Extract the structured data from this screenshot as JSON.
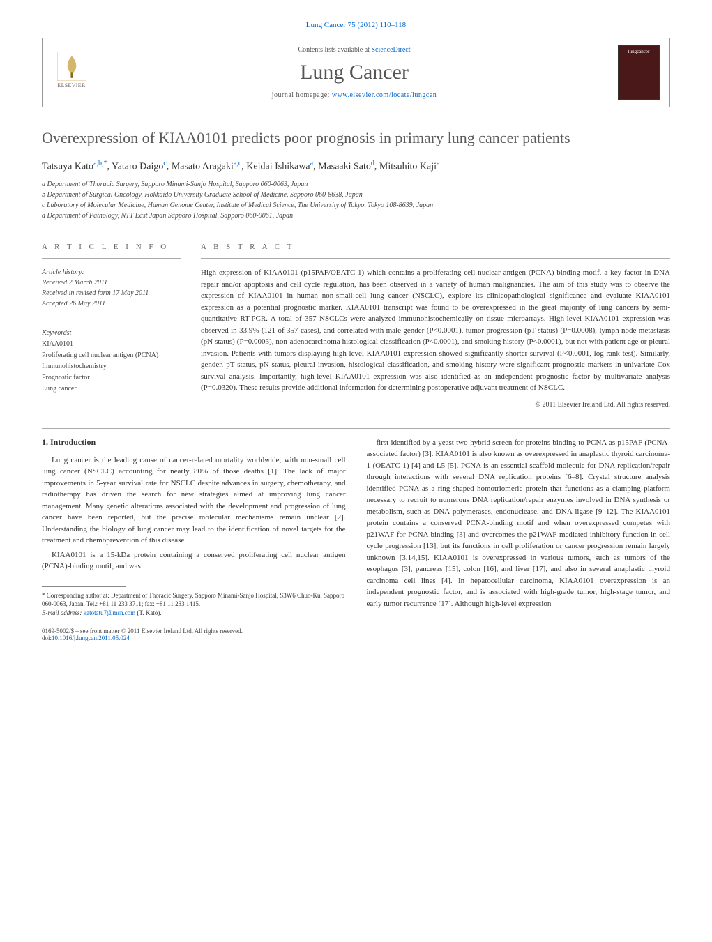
{
  "top_reference": "Lung Cancer 75 (2012) 110–118",
  "header": {
    "contents_line_prefix": "Contents lists available at ",
    "contents_link": "ScienceDirect",
    "journal_name": "Lung Cancer",
    "homepage_prefix": "journal homepage: ",
    "homepage_url": "www.elsevier.com/locate/lungcan",
    "publisher": "ELSEVIER",
    "cover_label": "lungcancer"
  },
  "title": "Overexpression of KIAA0101 predicts poor prognosis in primary lung cancer patients",
  "authors_html": "Tatsuya Kato<sup>a,b,*</sup>, Yataro Daigo<sup>c</sup>, Masato Aragaki<sup>a,c</sup>, Keidai Ishikawa<sup>a</sup>, Masaaki Sato<sup>d</sup>, Mitsuhito Kaji<sup>a</sup>",
  "affiliations": [
    "a Department of Thoracic Surgery, Sapporo Minami-Sanjo Hospital, Sapporo 060-0063, Japan",
    "b Department of Surgical Oncology, Hokkaido University Graduate School of Medicine, Sapporo 060-8638, Japan",
    "c Laboratory of Molecular Medicine, Human Genome Center, Institute of Medical Science, The University of Tokyo, Tokyo 108-8639, Japan",
    "d Department of Pathology, NTT East Japan Sapporo Hospital, Sapporo 060-0061, Japan"
  ],
  "article_info": {
    "heading": "a r t i c l e   i n f o",
    "history_label": "Article history:",
    "history": [
      "Received 2 March 2011",
      "Received in revised form 17 May 2011",
      "Accepted 26 May 2011"
    ],
    "keywords_label": "Keywords:",
    "keywords": [
      "KIAA0101",
      "Proliferating cell nuclear antigen (PCNA)",
      "Immunohistochemistry",
      "Prognostic factor",
      "Lung cancer"
    ]
  },
  "abstract": {
    "heading": "a b s t r a c t",
    "text": "High expression of KIAA0101 (p15PAF/OEATC-1) which contains a proliferating cell nuclear antigen (PCNA)-binding motif, a key factor in DNA repair and/or apoptosis and cell cycle regulation, has been observed in a variety of human malignancies. The aim of this study was to observe the expression of KIAA0101 in human non-small-cell lung cancer (NSCLC), explore its clinicopathological significance and evaluate KIAA0101 expression as a potential prognostic marker. KIAA0101 transcript was found to be overexpressed in the great majority of lung cancers by semi-quantitative RT-PCR. A total of 357 NSCLCs were analyzed immunohistochemically on tissue microarrays. High-level KIAA0101 expression was observed in 33.9% (121 of 357 cases), and correlated with male gender (P<0.0001), tumor progression (pT status) (P=0.0008), lymph node metastasis (pN status) (P=0.0003), non-adenocarcinoma histological classification (P<0.0001), and smoking history (P<0.0001), but not with patient age or pleural invasion. Patients with tumors displaying high-level KIAA0101 expression showed significantly shorter survival (P<0.0001, log-rank test). Similarly, gender, pT status, pN status, pleural invasion, histological classification, and smoking history were significant prognostic markers in univariate Cox survival analysis. Importantly, high-level KIAA0101 expression was also identified as an independent prognostic factor by multivariate analysis (P=0.0320). These results provide additional information for determining postoperative adjuvant treatment of NSCLC.",
    "copyright": "© 2011 Elsevier Ireland Ltd. All rights reserved."
  },
  "body": {
    "section_heading": "1. Introduction",
    "left_paragraphs": [
      "Lung cancer is the leading cause of cancer-related mortality worldwide, with non-small cell lung cancer (NSCLC) accounting for nearly 80% of those deaths [1]. The lack of major improvements in 5-year survival rate for NSCLC despite advances in surgery, chemotherapy, and radiotherapy has driven the search for new strategies aimed at improving lung cancer management. Many genetic alterations associated with the development and progression of lung cancer have been reported, but the precise molecular mechanisms remain unclear [2]. Understanding the biology of lung cancer may lead to the identification of novel targets for the treatment and chemoprevention of this disease.",
      "KIAA0101 is a 15-kDa protein containing a conserved proliferating cell nuclear antigen (PCNA)-binding motif, and was"
    ],
    "right_paragraphs": [
      "first identified by a yeast two-hybrid screen for proteins binding to PCNA as p15PAF (PCNA-associated factor) [3]. KIAA0101 is also known as overexpressed in anaplastic thyroid carcinoma-1 (OEATC-1) [4] and L5 [5]. PCNA is an essential scaffold molecule for DNA replication/repair through interactions with several DNA replication proteins [6–8]. Crystal structure analysis identified PCNA as a ring-shaped homotriomeric protein that functions as a clamping platform necessary to recruit to numerous DNA replication/repair enzymes involved in DNA synthesis or metabolism, such as DNA polymerases, endonuclease, and DNA ligase [9–12]. The KIAA0101 protein contains a conserved PCNA-binding motif and when overexpressed competes with p21WAF for PCNA binding [3] and overcomes the p21WAF-mediated inhibitory function in cell cycle progression [13], but its functions in cell proliferation or cancer progression remain largely unknown [3,14,15]. KIAA0101 is overexpressed in various tumors, such as tumors of the esophagus [3], pancreas [15], colon [16], and liver [17], and also in several anaplastic thyroid carcinoma cell lines [4]. In hepatocellular carcinoma, KIAA0101 overexpression is an independent prognostic factor, and is associated with high-grade tumor, high-stage tumor, and early tumor recurrence [17]. Although high-level expression"
    ]
  },
  "footnote": {
    "corresponding": "* Corresponding author at: Department of Thoracic Surgery, Sapporo Minami-Sanjo Hospital, S3W6 Chuo-Ku, Sapporo 060-0063, Japan. Tel.: +81 11 233 3711; fax: +81 11 233 1415.",
    "email_label": "E-mail address: ",
    "email": "katotatu7@msn.com",
    "email_suffix": " (T. Kato)."
  },
  "footer": {
    "issn_line": "0169-5002/$ – see front matter © 2011 Elsevier Ireland Ltd. All rights reserved.",
    "doi_label": "doi:",
    "doi": "10.1016/j.lungcan.2011.05.024"
  },
  "colors": {
    "link": "#0066cc",
    "text": "#333333",
    "muted": "#555555",
    "border": "#999999",
    "cover_bg": "#4a1818"
  }
}
